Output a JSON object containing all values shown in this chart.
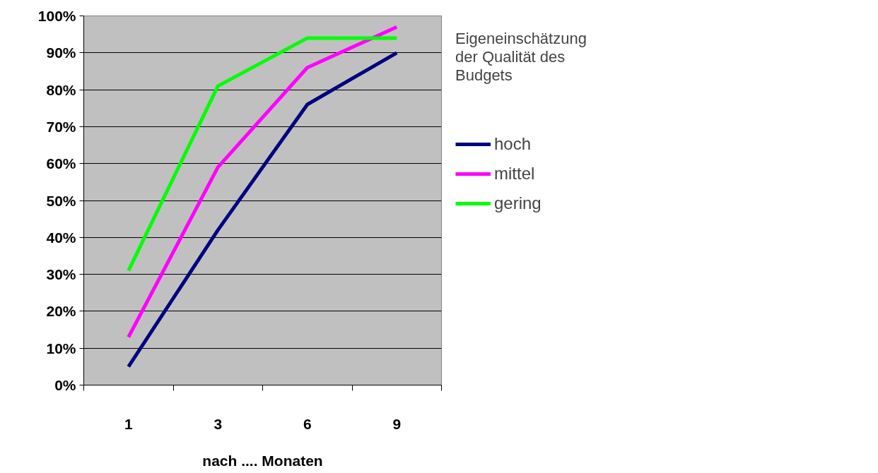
{
  "chart_data": {
    "type": "line",
    "categories": [
      "1",
      "3",
      "6",
      "9"
    ],
    "xlabel": "nach .... Monaten",
    "legend_title": "Eigeneinschätzung der Qualität des Budgets",
    "legend": "right",
    "grid": "y",
    "ylim": [
      0,
      100
    ],
    "yticks": [
      {
        "value": 0,
        "label": "0%"
      },
      {
        "value": 10,
        "label": "10%"
      },
      {
        "value": 20,
        "label": "20%"
      },
      {
        "value": 30,
        "label": "30%"
      },
      {
        "value": 40,
        "label": "40%"
      },
      {
        "value": 50,
        "label": "50%"
      },
      {
        "value": 60,
        "label": "60%"
      },
      {
        "value": 70,
        "label": "70%"
      },
      {
        "value": 80,
        "label": "80%"
      },
      {
        "value": 90,
        "label": "90%"
      },
      {
        "value": 100,
        "label": "100%"
      }
    ],
    "series": [
      {
        "name": "hoch",
        "color": "#000080",
        "values": [
          5,
          42,
          76,
          90
        ]
      },
      {
        "name": "mittel",
        "color": "#ff00ff",
        "values": [
          13,
          59,
          86,
          97
        ]
      },
      {
        "name": "gering",
        "color": "#00ff00",
        "values": [
          31,
          81,
          94,
          94
        ]
      }
    ]
  }
}
